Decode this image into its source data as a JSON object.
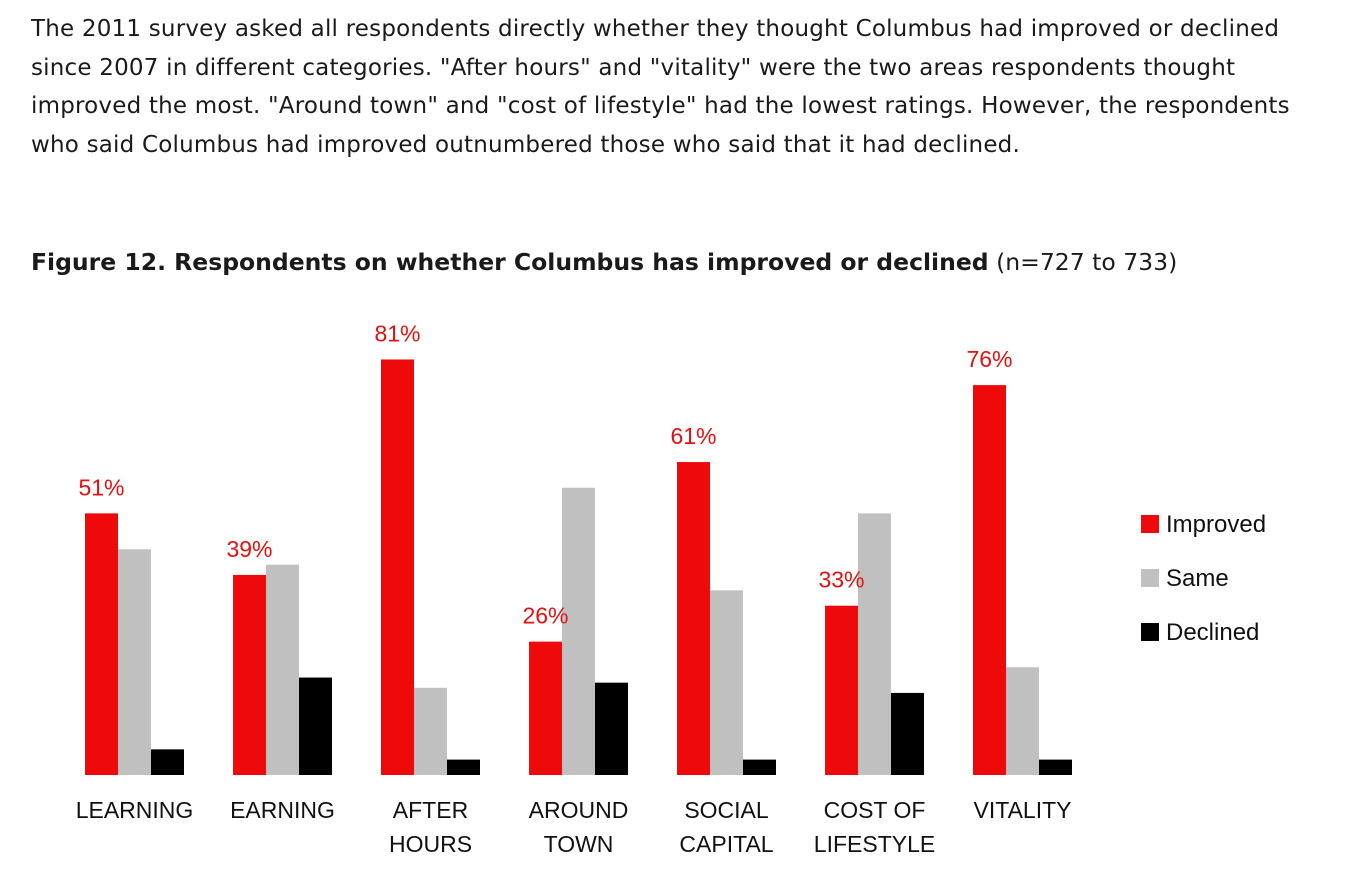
{
  "intro_text": "The 2011 survey asked all respondents directly whether they thought Columbus had improved or declined since 2007 in different categories. \"After hours\" and \"vitality\" were the two areas respondents thought improved the most. \"Around town\" and \"cost of lifestyle\" had the lowest ratings. However, the respondents who said Columbus had improved outnumbered those who said that it had declined.",
  "figure": {
    "title_main": "Figure 12. Respondents on whether Columbus has improved or declined",
    "title_note": "(n=727 to 733)"
  },
  "chart_data": {
    "type": "bar",
    "categories": [
      [
        "LEARNING"
      ],
      [
        "EARNING"
      ],
      [
        "AFTER",
        "HOURS"
      ],
      [
        "AROUND",
        "TOWN"
      ],
      [
        "SOCIAL",
        "CAPITAL"
      ],
      [
        "COST OF",
        "LIFESTYLE"
      ],
      [
        "VITALITY"
      ]
    ],
    "series": [
      {
        "name": "Improved",
        "color": "#ee0a0a",
        "values": [
          51,
          39,
          81,
          26,
          61,
          33,
          76
        ]
      },
      {
        "name": "Same",
        "color": "#c0c0c0",
        "values": [
          44,
          41,
          17,
          56,
          36,
          51,
          21
        ]
      },
      {
        "name": "Declined",
        "color": "#000000",
        "values": [
          5,
          19,
          3,
          18,
          3,
          16,
          3
        ]
      }
    ],
    "data_labels": [
      "51%",
      "39%",
      "81%",
      "26%",
      "61%",
      "33%",
      "76%"
    ],
    "data_label_series": "Improved",
    "data_label_color": "#e80f0f",
    "ylim": [
      0,
      100
    ],
    "legend": "right",
    "grid": false
  }
}
